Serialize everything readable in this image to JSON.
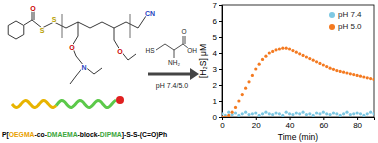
{
  "chart_data": {
    "type": "scatter",
    "x_label": "Time (min)",
    "y_label": "[H₂S] μM",
    "x": [
      0,
      2,
      4,
      6,
      8,
      10,
      12,
      14,
      16,
      18,
      20,
      22,
      24,
      26,
      28,
      30,
      32,
      34,
      36,
      38,
      40,
      42,
      44,
      46,
      48,
      50,
      52,
      54,
      56,
      58,
      60,
      62,
      64,
      66,
      68,
      70,
      72,
      74,
      76,
      78,
      80,
      82,
      84,
      86,
      88,
      90
    ],
    "series": [
      {
        "name": "pH 7.4",
        "color": "#7ec8e3",
        "marker": "circle",
        "values": [
          0.2,
          0.1,
          0.3,
          0.15,
          0.25,
          0.1,
          0.2,
          0.3,
          0.15,
          0.2,
          0.25,
          0.1,
          0.2,
          0.3,
          0.2,
          0.15,
          0.25,
          0.2,
          0.1,
          0.3,
          0.2,
          0.15,
          0.25,
          0.2,
          0.3,
          0.15,
          0.2,
          0.1,
          0.25,
          0.2,
          0.3,
          0.2,
          0.15,
          0.25,
          0.2,
          0.1,
          0.2,
          0.3,
          0.15,
          0.2,
          0.25,
          0.2,
          0.1,
          0.2,
          0.3,
          0.2
        ]
      },
      {
        "name": "pH 5.0",
        "color": "#f47a20",
        "marker": "circle",
        "values": [
          0,
          0,
          0.1,
          0.3,
          0.6,
          1.0,
          1.4,
          1.8,
          2.2,
          2.6,
          3.0,
          3.3,
          3.6,
          3.8,
          4.0,
          4.1,
          4.2,
          4.25,
          4.3,
          4.3,
          4.25,
          4.15,
          4.05,
          3.95,
          3.85,
          3.75,
          3.65,
          3.55,
          3.45,
          3.35,
          3.25,
          3.15,
          3.05,
          2.98,
          2.9,
          2.85,
          2.8,
          2.75,
          2.7,
          2.65,
          2.6,
          2.55,
          2.5,
          2.45,
          2.4,
          2.35
        ]
      }
    ],
    "xlim": [
      0,
      90
    ],
    "xticks": [
      0,
      20,
      40,
      60,
      80
    ],
    "ylim": [
      0,
      7
    ],
    "yticks": [
      0,
      1,
      2,
      3,
      4,
      5,
      6,
      7
    ],
    "legend": "upper right",
    "grid": false
  },
  "diagram": {
    "structure_atoms": [
      "O",
      "S",
      "S",
      "O",
      "O",
      "N",
      "CN"
    ],
    "reagent_atoms": [
      "HS",
      "NH₂",
      "OH",
      "O"
    ],
    "condition": "pH 7.4/5.0",
    "polymer_name": [
      "P[",
      "OEGMA",
      "-co-",
      "DMAEMA",
      "-block-",
      "DIPMA",
      "]-S-S-(C=O)Ph"
    ]
  }
}
